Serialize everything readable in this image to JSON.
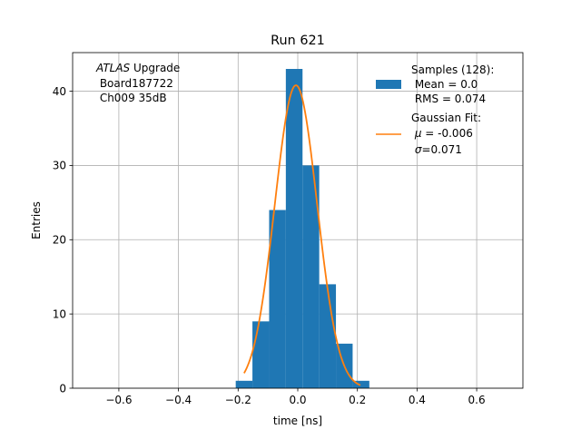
{
  "chart_data": {
    "type": "bar",
    "title": "Run 621",
    "xlabel": "time [ns]",
    "ylabel": "Entries",
    "xlim": [
      -0.755,
      0.755
    ],
    "ylim": [
      0,
      45.2
    ],
    "grid": true,
    "xticks": [
      -0.6,
      -0.4,
      -0.2,
      0.0,
      0.2,
      0.4,
      0.6
    ],
    "xtick_labels": [
      "−0.6",
      "−0.4",
      "−0.2",
      "0.0",
      "0.2",
      "0.4",
      "0.6"
    ],
    "yticks": [
      0,
      10,
      20,
      30,
      40
    ],
    "ytick_labels": [
      "0",
      "10",
      "20",
      "30",
      "40"
    ],
    "annotation": {
      "italic": "ATLAS",
      "line1_rest": " Upgrade",
      "line2": " Board187722",
      "line3": " Ch009 35dB"
    },
    "legend": {
      "position": "top-right",
      "hist_lines": [
        "Samples (128):",
        " Mean = 0.0",
        " RMS = 0.074"
      ],
      "fit_line1": "Gaussian Fit:",
      "fit_mu_symbol": "μ",
      "fit_mu_value": " = -0.006",
      "fit_sigma_symbol": "σ",
      "fit_sigma_value": "=0.071"
    },
    "histogram": {
      "name": "Samples",
      "color": "#1f77b4",
      "bins": [
        {
          "x0": -0.208,
          "x1": -0.152,
          "count": 1
        },
        {
          "x0": -0.152,
          "x1": -0.096,
          "count": 9
        },
        {
          "x0": -0.096,
          "x1": -0.04,
          "count": 24
        },
        {
          "x0": -0.04,
          "x1": 0.016,
          "count": 43
        },
        {
          "x0": 0.016,
          "x1": 0.072,
          "count": 30
        },
        {
          "x0": 0.072,
          "x1": 0.128,
          "count": 14
        },
        {
          "x0": 0.128,
          "x1": 0.184,
          "count": 6
        },
        {
          "x0": 0.184,
          "x1": 0.24,
          "count": 1
        }
      ]
    },
    "fit": {
      "name": "Gaussian Fit",
      "color": "#ff7f0e",
      "amplitude": 40.8,
      "mu": -0.006,
      "sigma": 0.071,
      "x_range": [
        -0.18,
        0.21
      ]
    }
  }
}
